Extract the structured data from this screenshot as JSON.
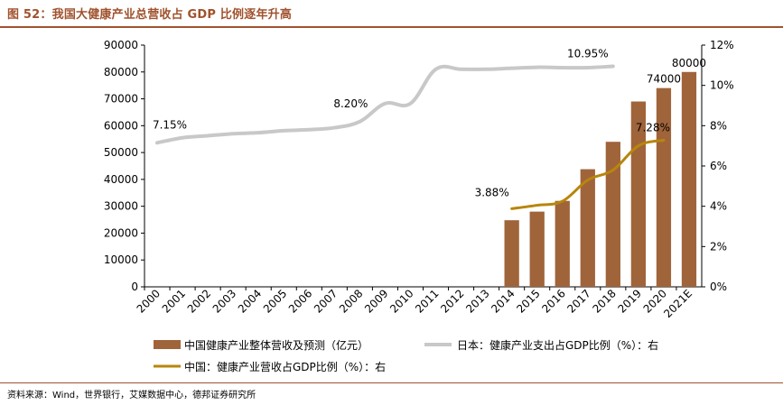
{
  "figure": {
    "title": "图 52：我国大健康产业总营收占 GDP 比例逐年升高",
    "source": "资料来源：Wind，世界银行，艾媒数据中心，德邦证券研究所"
  },
  "colors": {
    "title": "#a0522d",
    "bar": "#a0643a",
    "japan_line": "#c8c8c8",
    "china_line": "#b8860b"
  },
  "chart_data": {
    "type": "bar",
    "categories": [
      "2000",
      "2001",
      "2002",
      "2003",
      "2004",
      "2005",
      "2006",
      "2007",
      "2008",
      "2009",
      "2010",
      "2011",
      "2012",
      "2013",
      "2014",
      "2015",
      "2016",
      "2017",
      "2018",
      "2019",
      "2020",
      "2021E"
    ],
    "y_left": {
      "min": 0,
      "max": 90000,
      "ticks": [
        "0",
        "10000",
        "20000",
        "30000",
        "40000",
        "50000",
        "60000",
        "70000",
        "80000",
        "90000"
      ]
    },
    "y_right": {
      "min": 0,
      "max": 12,
      "ticks": [
        "0%",
        "2%",
        "4%",
        "6%",
        "8%",
        "10%",
        "12%"
      ]
    },
    "series": [
      {
        "name": "中国健康产业整体营收及预测（亿元）",
        "type": "bar",
        "axis": "left",
        "values": [
          null,
          null,
          null,
          null,
          null,
          null,
          null,
          null,
          null,
          null,
          null,
          null,
          null,
          null,
          24800,
          28000,
          32000,
          43800,
          54000,
          69000,
          74000,
          80000
        ]
      },
      {
        "name": "日本：健康产业支出占GDP比例（%）：右",
        "type": "line",
        "axis": "right",
        "values": [
          7.15,
          7.4,
          7.5,
          7.6,
          7.65,
          7.75,
          7.8,
          7.9,
          8.2,
          9.1,
          9.1,
          10.8,
          10.8,
          10.8,
          10.85,
          10.9,
          10.88,
          10.88,
          10.95,
          null,
          null,
          null
        ]
      },
      {
        "name": "中国：健康产业营收占GDP比例（%）：右",
        "type": "line",
        "axis": "right",
        "values": [
          null,
          null,
          null,
          null,
          null,
          null,
          null,
          null,
          null,
          null,
          null,
          null,
          null,
          null,
          3.88,
          4.05,
          4.25,
          5.3,
          5.8,
          7.0,
          7.28,
          null
        ]
      }
    ],
    "data_labels": [
      {
        "text": "7.15%",
        "series": 1,
        "index": 0
      },
      {
        "text": "8.20%",
        "series": 1,
        "index": 8
      },
      {
        "text": "10.95%",
        "series": 1,
        "index": 18
      },
      {
        "text": "3.88%",
        "series": 2,
        "index": 14
      },
      {
        "text": "7.28%",
        "series": 2,
        "index": 20
      },
      {
        "text": "74000",
        "series": 0,
        "index": 20
      },
      {
        "text": "80000",
        "series": 0,
        "index": 21
      }
    ],
    "grid": false,
    "legend_position": "bottom"
  }
}
